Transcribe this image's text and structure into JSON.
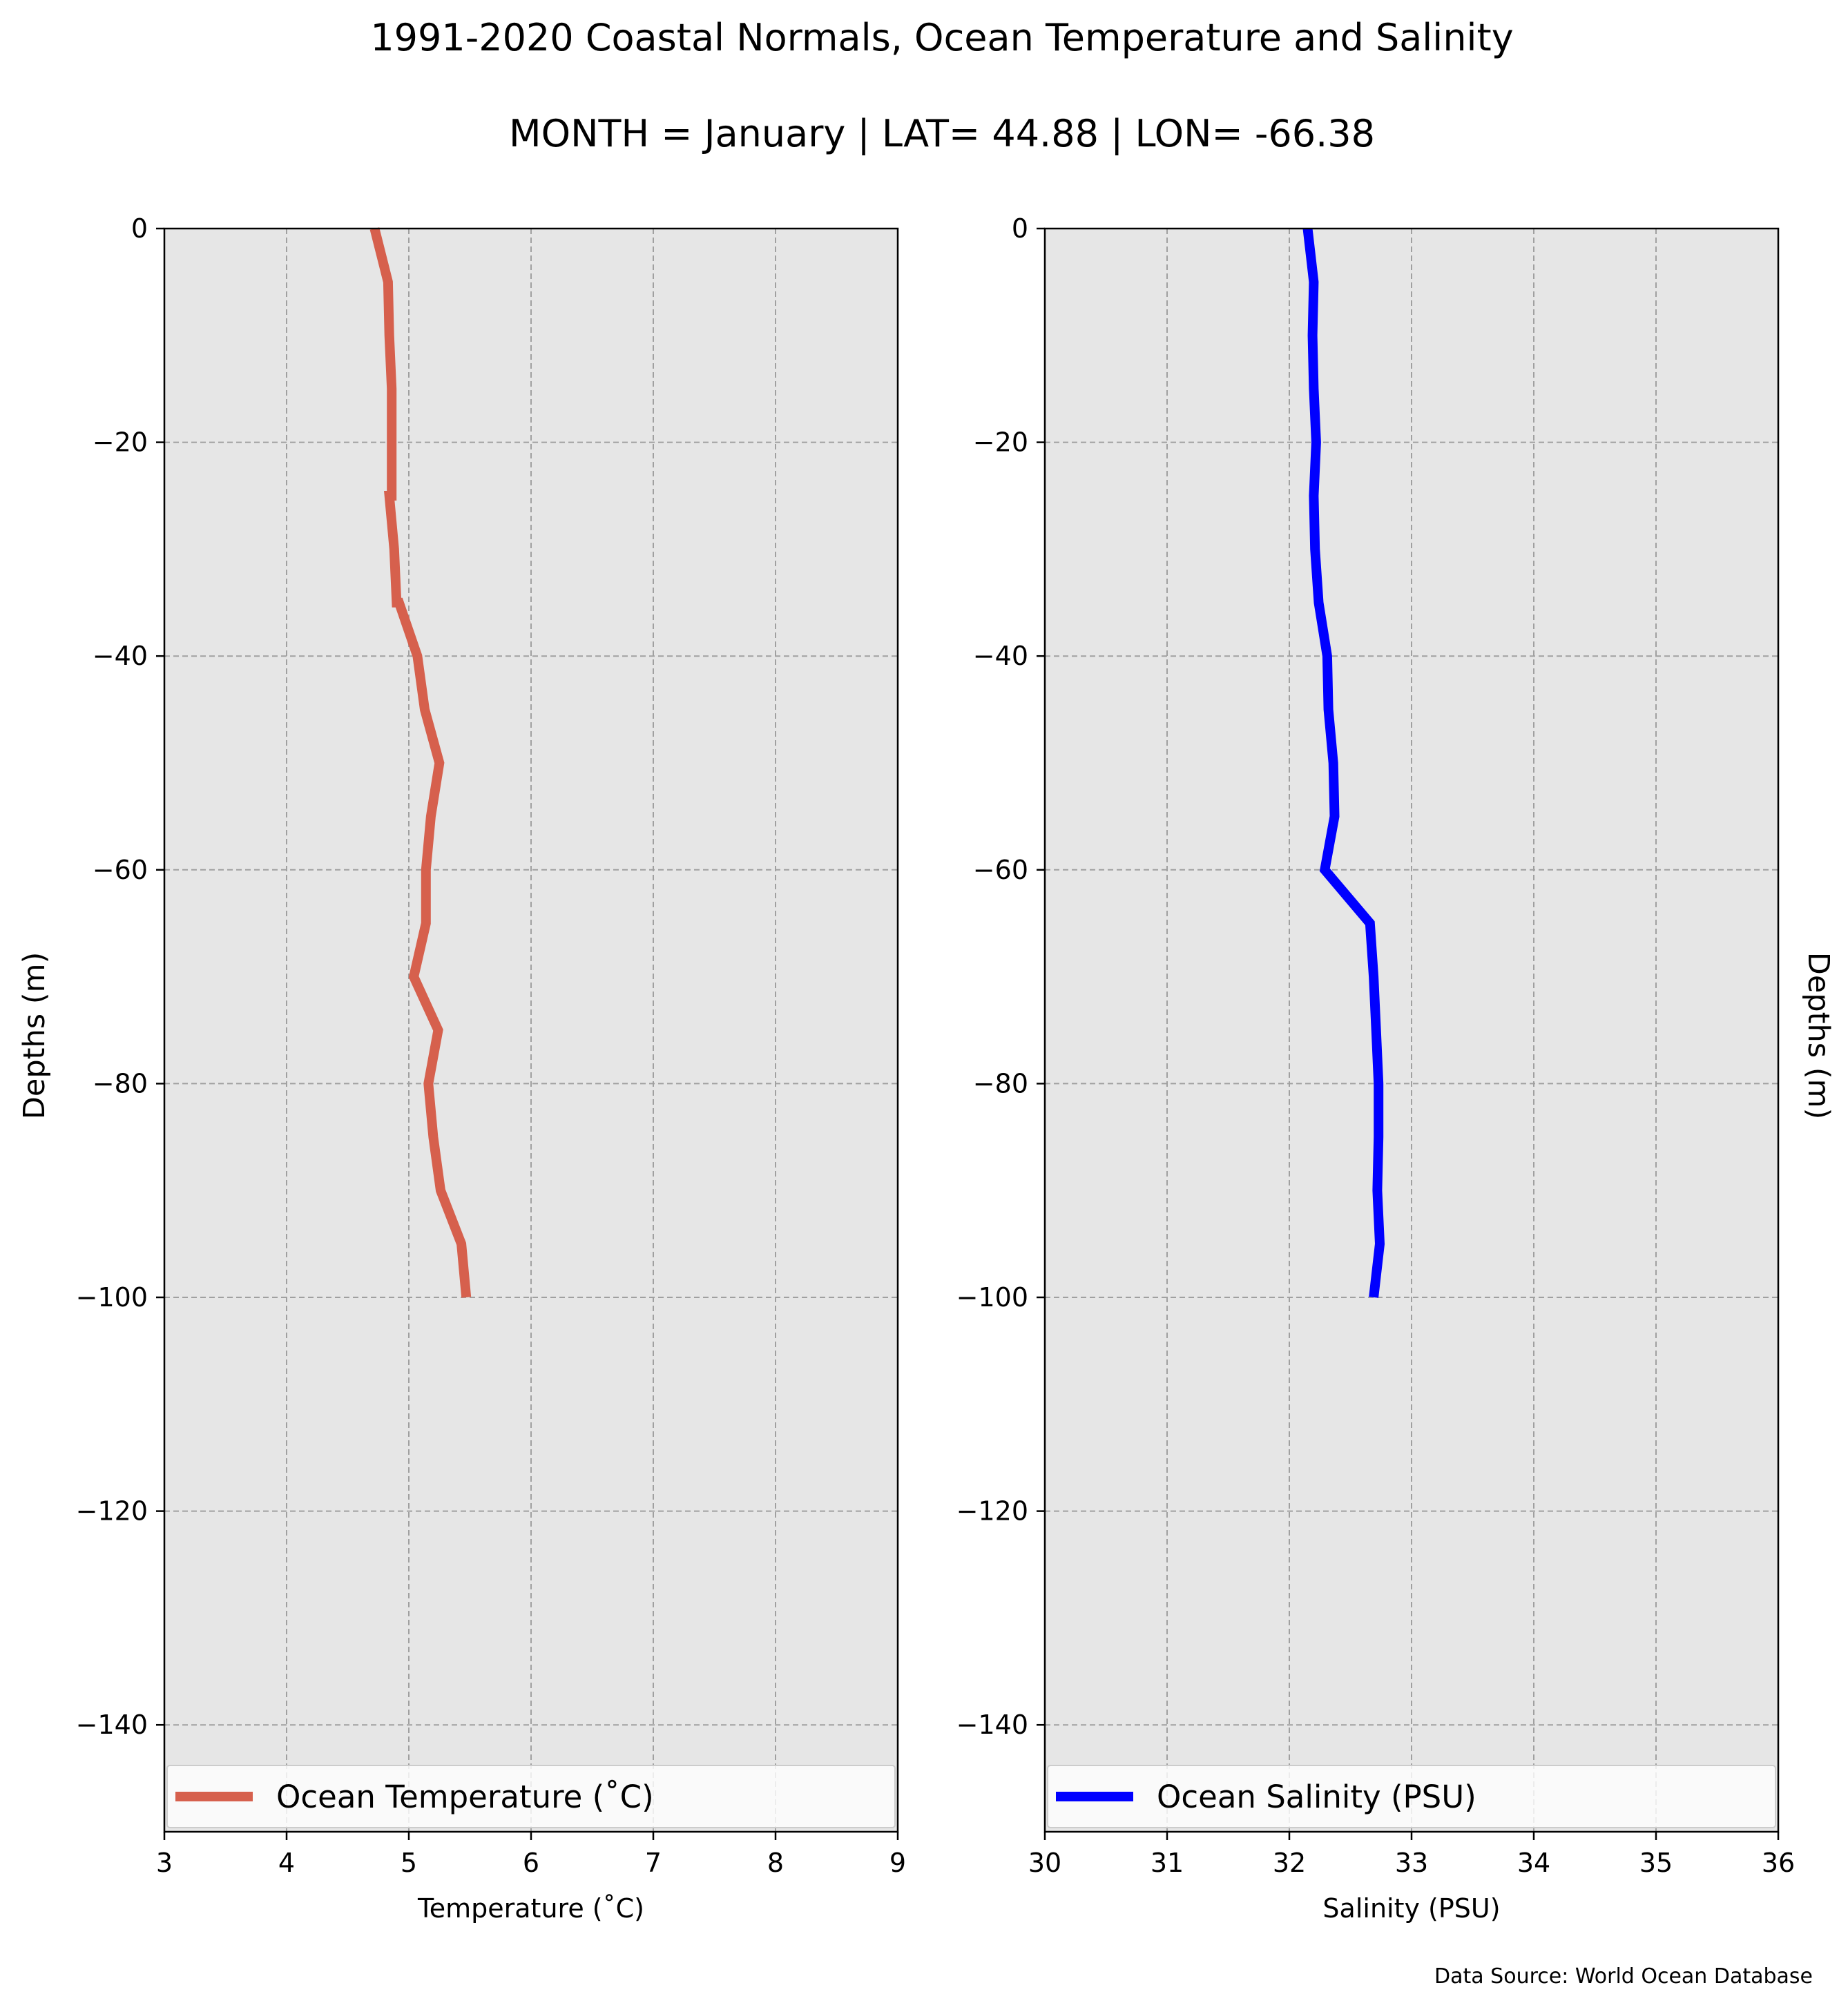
{
  "title": "1991-2020 Coastal Normals, Ocean Temperature and Salinity",
  "subtitle": "MONTH = January | LAT= 44.88 | LON= -66.38",
  "source": "Data Source: World Ocean Database",
  "chart_data": [
    {
      "type": "line",
      "xlabel": "Temperature ($^\\circ$C)",
      "xlabel_display": "Temperature (˚C)",
      "ylabel": "Depths (m)",
      "ylabel_side": "left",
      "xlim": [
        3,
        9
      ],
      "ylim": [
        -150,
        0
      ],
      "xticks": [
        "3",
        "4",
        "5",
        "6",
        "7",
        "8",
        "9"
      ],
      "yticks": [
        "0",
        "−20",
        "−40",
        "−60",
        "−80",
        "−100",
        "−120",
        "−140"
      ],
      "ytick_values": [
        0,
        -20,
        -40,
        -60,
        -80,
        -100,
        -120,
        -140
      ],
      "xtick_values": [
        3,
        4,
        5,
        6,
        7,
        8,
        9
      ],
      "grid": true,
      "legend_position": "bottom",
      "background": "#e6e6e6",
      "series": [
        {
          "name": "Ocean Temperature (˚C)",
          "color": "#d6604d",
          "x": [
            4.72,
            4.83,
            4.84,
            4.86,
            4.86,
            4.86,
            4.84,
            4.88,
            4.9,
            4.92,
            5.07,
            5.13,
            5.25,
            5.18,
            5.14,
            5.14,
            5.14,
            5.04,
            5.24,
            5.16,
            5.2,
            5.26,
            5.43,
            5.47
          ],
          "y": [
            0,
            -5,
            -10,
            -15,
            -20,
            -25,
            -25,
            -30,
            -35,
            -35,
            -40,
            -45,
            -50,
            -55,
            -60,
            -60,
            -65,
            -70,
            -75,
            -80,
            -85,
            -90,
            -95,
            -100
          ]
        }
      ]
    },
    {
      "type": "line",
      "xlabel": "Salinity (PSU)",
      "ylabel": "Depths (m)",
      "ylabel_side": "right",
      "xlim": [
        30,
        36
      ],
      "ylim": [
        -150,
        0
      ],
      "xticks": [
        "30",
        "31",
        "32",
        "33",
        "34",
        "35",
        "36"
      ],
      "yticks": [
        "0",
        "−20",
        "−40",
        "−60",
        "−80",
        "−100",
        "−120",
        "−140"
      ],
      "ytick_values": [
        0,
        -20,
        -40,
        -60,
        -80,
        -100,
        -120,
        -140
      ],
      "xtick_values": [
        30,
        31,
        32,
        33,
        34,
        35,
        36
      ],
      "grid": true,
      "legend_position": "bottom",
      "background": "#e6e6e6",
      "series": [
        {
          "name": "Ocean Salinity (PSU)",
          "color": "#0000ff",
          "x": [
            32.15,
            32.2,
            32.19,
            32.2,
            32.22,
            32.2,
            32.21,
            32.24,
            32.31,
            32.32,
            32.36,
            32.37,
            32.29,
            32.66,
            32.69,
            32.71,
            32.73,
            32.73,
            32.72,
            32.74,
            32.69
          ],
          "y": [
            0,
            -5,
            -10,
            -15,
            -20,
            -25,
            -30,
            -35,
            -40,
            -45,
            -50,
            -55,
            -60,
            -65,
            -70,
            -75,
            -80,
            -85,
            -90,
            -95,
            -100
          ]
        }
      ]
    }
  ]
}
